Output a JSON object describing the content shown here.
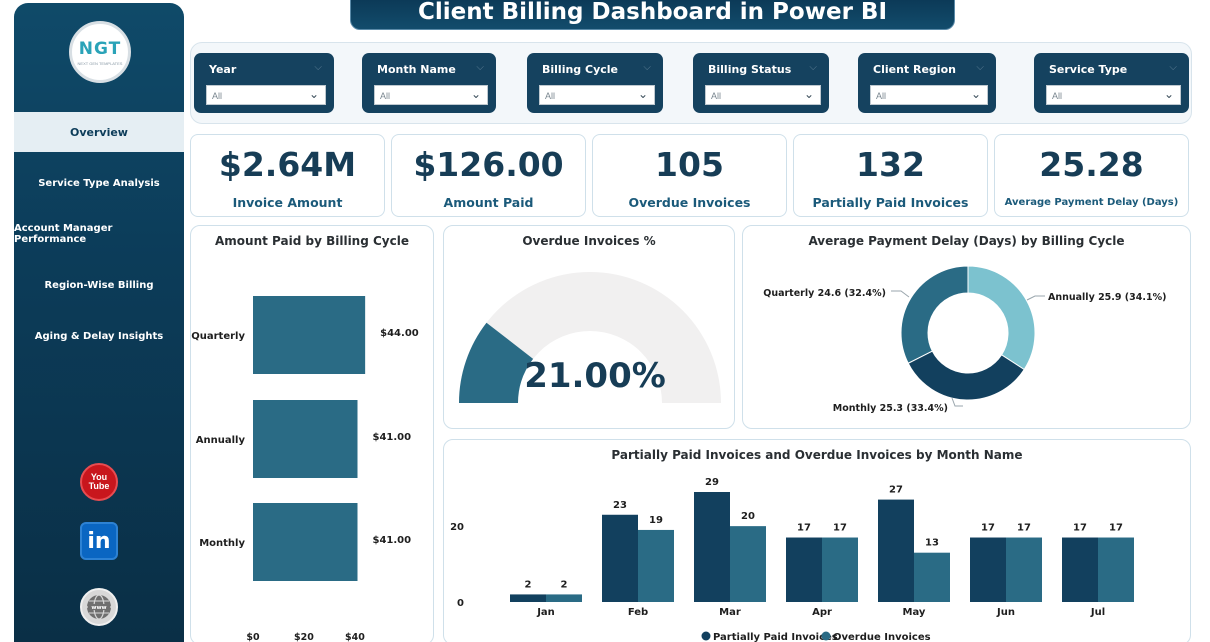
{
  "title": "Client Billing Dashboard in Power BI",
  "logo": {
    "text": "NGT",
    "subtext": "NEXT GEN TEMPLATES"
  },
  "sidebar": {
    "items": [
      {
        "label": "Overview",
        "active": true
      },
      {
        "label": "Service Type Analysis",
        "active": false
      },
      {
        "label": "Account Manager Performance",
        "active": false
      },
      {
        "label": "Region-Wise Billing",
        "active": false
      },
      {
        "label": "Aging & Delay Insights",
        "active": false
      }
    ],
    "social": {
      "youtube_line1": "You",
      "youtube_line2": "Tube",
      "linkedin": "in"
    }
  },
  "filters": [
    {
      "label": "Year",
      "value": "All"
    },
    {
      "label": "Month Name",
      "value": "All"
    },
    {
      "label": "Billing Cycle",
      "value": "All"
    },
    {
      "label": "Billing Status",
      "value": "All"
    },
    {
      "label": "Client Region",
      "value": "All"
    },
    {
      "label": "Service Type",
      "value": "All"
    }
  ],
  "kpis": [
    {
      "value": "$2.64M",
      "label": "Invoice Amount"
    },
    {
      "value": "$126.00",
      "label": "Amount Paid"
    },
    {
      "value": "105",
      "label": "Overdue Invoices"
    },
    {
      "value": "132",
      "label": "Partially Paid Invoices"
    },
    {
      "value": "25.28",
      "label": "Average Payment Delay (Days)"
    }
  ],
  "colors": {
    "dark": "#12405e",
    "mid": "#2a6b85",
    "light": "#7cc2cf",
    "gauge_bg": "#f1f0f0"
  },
  "chart_data": [
    {
      "type": "bar",
      "orientation": "horizontal",
      "title": "Amount Paid by Billing Cycle",
      "categories": [
        "Quarterly",
        "Annually",
        "Monthly"
      ],
      "values": [
        44,
        41,
        41
      ],
      "value_labels": [
        "$44.00",
        "$41.00",
        "$41.00"
      ],
      "xticks": [
        "$0",
        "$20",
        "$40"
      ],
      "xlim": [
        0,
        50
      ]
    },
    {
      "type": "gauge",
      "title": "Overdue Invoices %",
      "value": 21.0,
      "max": 100,
      "value_label": "21.00%"
    },
    {
      "type": "pie",
      "title": "Average Payment Delay (Days) by Billing Cycle",
      "slices": [
        {
          "label": "Annually 25.9 (34.1%)",
          "value": 25.9
        },
        {
          "label": "Monthly 25.3 (33.4%)",
          "value": 25.3
        },
        {
          "label": "Quarterly 24.6 (32.4%)",
          "value": 24.6
        }
      ]
    },
    {
      "type": "bar",
      "title": "Partially Paid Invoices and Overdue Invoices by Month Name",
      "categories": [
        "Jan",
        "Feb",
        "Mar",
        "Apr",
        "May",
        "Jun",
        "Jul"
      ],
      "series": [
        {
          "name": "Partially Paid Invoices",
          "values": [
            2,
            23,
            29,
            17,
            27,
            17,
            17
          ]
        },
        {
          "name": "Overdue Invoices",
          "values": [
            2,
            19,
            20,
            17,
            13,
            17,
            17
          ]
        }
      ],
      "yticks": [
        "0",
        "20"
      ],
      "ylim": [
        0,
        30
      ],
      "legend": "bottom"
    }
  ]
}
